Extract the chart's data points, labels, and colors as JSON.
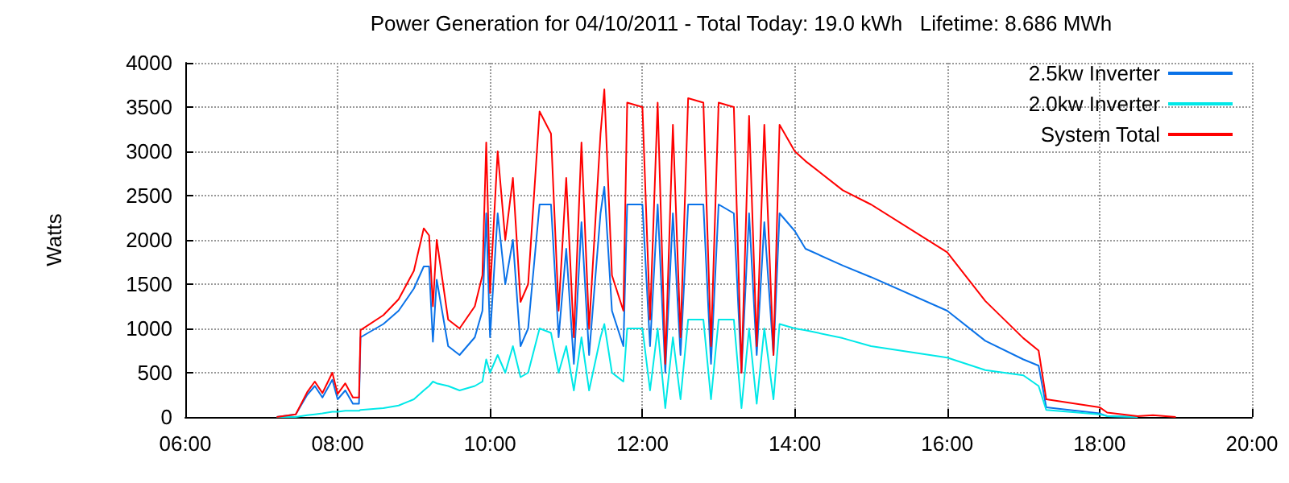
{
  "chart_data": {
    "type": "line",
    "title": "Power Generation for 04/10/2011 - Total Today: 19.0 kWh   Lifetime: 8.686 MWh",
    "ylabel": "Watts",
    "x": [
      7.2,
      7.45,
      7.6,
      7.7,
      7.8,
      7.93,
      8.0,
      8.1,
      8.2,
      8.28,
      8.3,
      8.6,
      8.8,
      9.0,
      9.13,
      9.2,
      9.25,
      9.3,
      9.45,
      9.6,
      9.8,
      9.9,
      9.95,
      10.0,
      10.1,
      10.2,
      10.3,
      10.4,
      10.5,
      10.65,
      10.8,
      10.9,
      11.0,
      11.1,
      11.2,
      11.3,
      11.45,
      11.5,
      11.6,
      11.75,
      11.8,
      12.0,
      12.1,
      12.2,
      12.3,
      12.4,
      12.5,
      12.6,
      12.8,
      12.9,
      13.0,
      13.2,
      13.3,
      13.4,
      13.5,
      13.6,
      13.72,
      13.8,
      14.0,
      14.14,
      14.63,
      15.0,
      16.0,
      16.5,
      17.0,
      17.2,
      17.3,
      18.0,
      18.1,
      18.5,
      18.7,
      19.0
    ],
    "series": [
      {
        "name": "2.5kw Inverter",
        "color": "#0a72e8",
        "values": [
          0,
          30,
          250,
          350,
          220,
          420,
          200,
          300,
          150,
          150,
          900,
          1050,
          1200,
          1450,
          1700,
          1700,
          850,
          1550,
          800,
          700,
          900,
          1200,
          2300,
          900,
          2300,
          1500,
          2000,
          800,
          1000,
          2400,
          2400,
          900,
          1900,
          600,
          2200,
          700,
          2300,
          2600,
          1200,
          800,
          2400,
          2400,
          800,
          2400,
          500,
          2300,
          700,
          2400,
          2400,
          600,
          2400,
          2300,
          500,
          2300,
          700,
          2200,
          700,
          2300,
          2100,
          1900,
          1710,
          1580,
          1200,
          860,
          650,
          580,
          110,
          40,
          10,
          0,
          null,
          null
        ]
      },
      {
        "name": "2.0kw Inverter",
        "color": "#00e8e8",
        "values": [
          0,
          0,
          20,
          30,
          40,
          60,
          60,
          70,
          70,
          70,
          80,
          100,
          130,
          200,
          300,
          350,
          400,
          380,
          350,
          300,
          350,
          400,
          650,
          500,
          700,
          500,
          800,
          450,
          500,
          1000,
          950,
          500,
          800,
          300,
          900,
          300,
          900,
          1050,
          500,
          400,
          1000,
          1000,
          300,
          1000,
          100,
          900,
          200,
          1100,
          1100,
          200,
          1100,
          1100,
          100,
          1000,
          150,
          1000,
          200,
          1050,
          1000,
          980,
          890,
          800,
          670,
          530,
          470,
          350,
          80,
          30,
          10,
          0,
          null,
          null
        ]
      },
      {
        "name": "System Total",
        "color": "#ff0000",
        "values": [
          0,
          30,
          280,
          400,
          270,
          500,
          260,
          380,
          220,
          220,
          980,
          1150,
          1330,
          1650,
          2130,
          2050,
          1250,
          2000,
          1100,
          1000,
          1250,
          1600,
          3100,
          1400,
          3000,
          2000,
          2700,
          1300,
          1500,
          3450,
          3200,
          1200,
          2700,
          900,
          3100,
          1000,
          3200,
          3700,
          1600,
          1200,
          3550,
          3500,
          1100,
          3550,
          600,
          3300,
          900,
          3600,
          3550,
          800,
          3550,
          3500,
          500,
          3400,
          800,
          3300,
          700,
          3300,
          3000,
          2890,
          2560,
          2400,
          1860,
          1310,
          890,
          750,
          200,
          110,
          50,
          10,
          20,
          0
        ]
      }
    ],
    "xlim": [
      6,
      20
    ],
    "xticks": [
      {
        "value": 6,
        "label": "06:00"
      },
      {
        "value": 8,
        "label": "08:00"
      },
      {
        "value": 10,
        "label": "10:00"
      },
      {
        "value": 12,
        "label": "12:00"
      },
      {
        "value": 14,
        "label": "14:00"
      },
      {
        "value": 16,
        "label": "16:00"
      },
      {
        "value": 18,
        "label": "18:00"
      },
      {
        "value": 20,
        "label": "20:00"
      }
    ],
    "ylim": [
      0,
      4000
    ],
    "yticks": [
      0,
      500,
      1000,
      1500,
      2000,
      2500,
      3000,
      3500,
      4000
    ],
    "grid": true,
    "legend": "top right",
    "marker": "none",
    "line_style": "solid"
  }
}
